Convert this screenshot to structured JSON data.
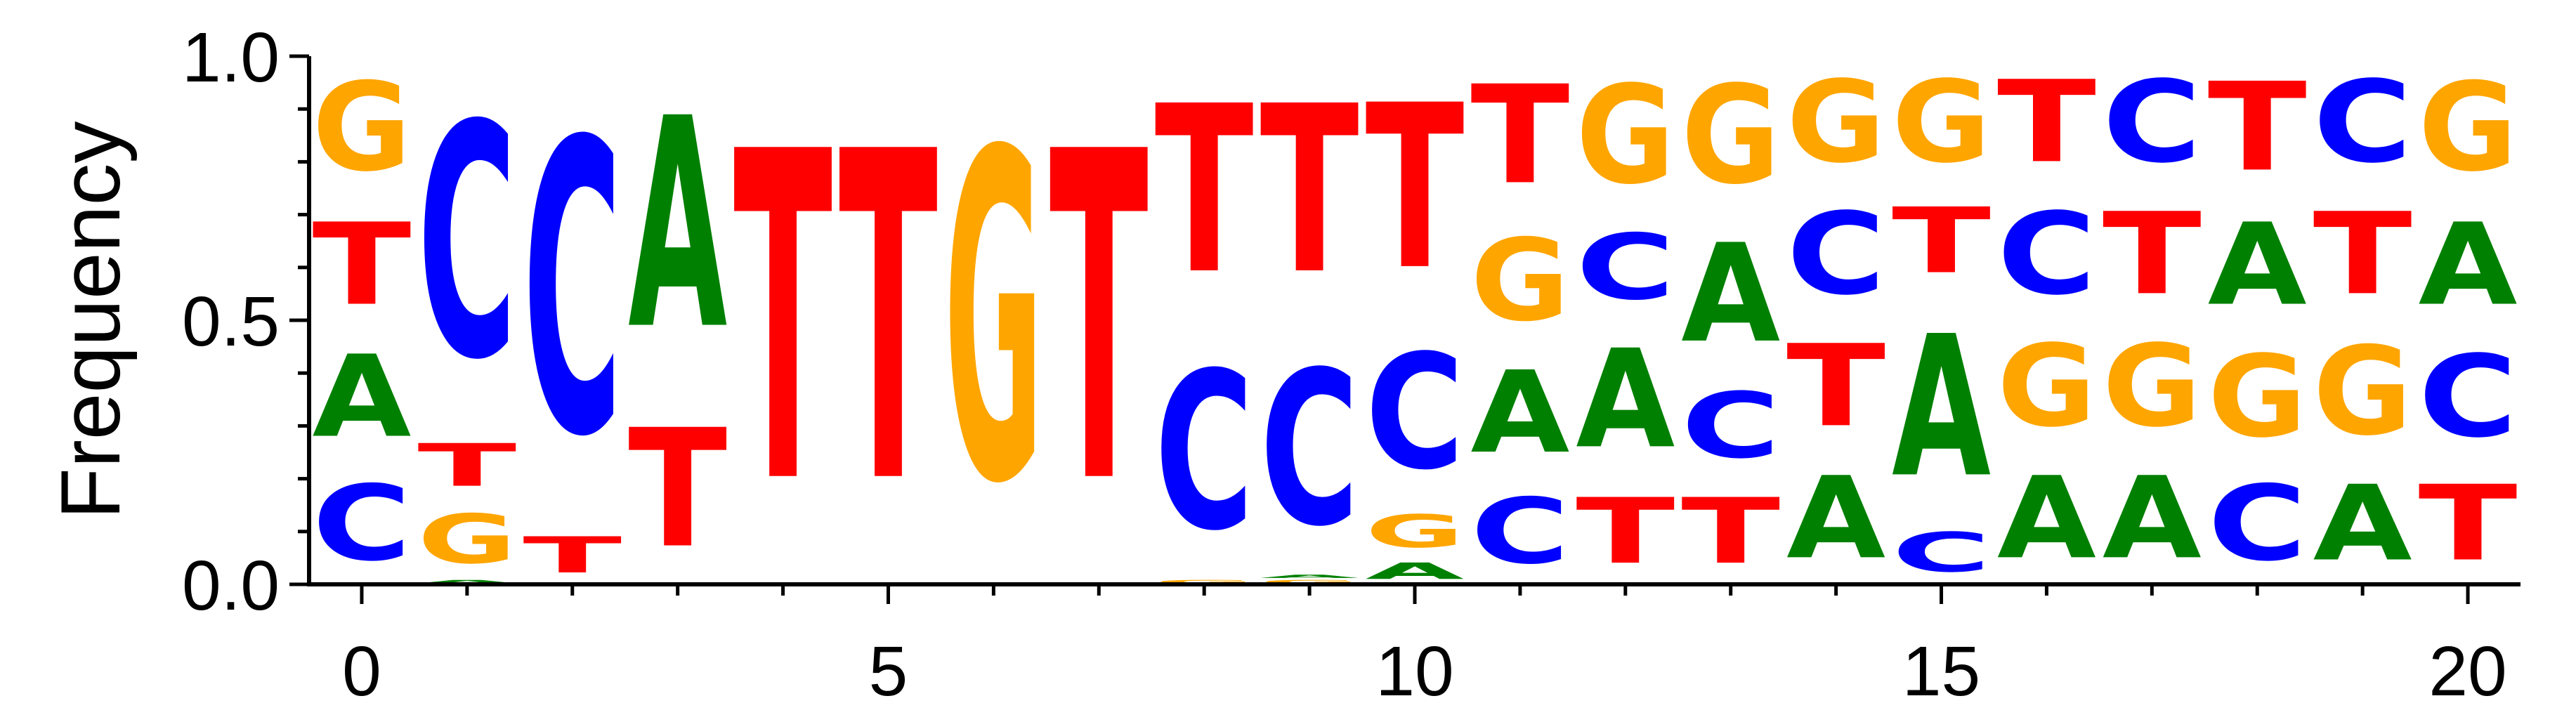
{
  "chart_data": {
    "type": "sequence-logo",
    "ylabel": "Frequency",
    "ylim": [
      0,
      1
    ],
    "xlim": [
      -0.5,
      20.5
    ],
    "xticks": [
      "0",
      "5",
      "10",
      "15",
      "20"
    ],
    "yticks": [
      "0.0",
      "0.5",
      "1.0"
    ],
    "colors": {
      "A": "#008000",
      "C": "#0000ff",
      "G": "#ffa500",
      "T": "#ff0000"
    },
    "positions": [
      {
        "pos": 0,
        "stack": [
          [
            "C",
            0.23
          ],
          [
            "A",
            0.25
          ],
          [
            "T",
            0.25
          ],
          [
            "G",
            0.27
          ]
        ]
      },
      {
        "pos": 1,
        "stack": [
          [
            "A",
            0.01
          ],
          [
            "G",
            0.15
          ],
          [
            "T",
            0.13
          ],
          [
            "C",
            0.71
          ]
        ]
      },
      {
        "pos": 2,
        "stack": [
          [
            "T",
            0.11
          ],
          [
            "C",
            0.89
          ]
        ]
      },
      {
        "pos": 3,
        "stack": [
          [
            "T",
            0.36
          ],
          [
            "A",
            0.64
          ]
        ]
      },
      {
        "pos": 4,
        "stack": [
          [
            "T",
            1.0
          ]
        ]
      },
      {
        "pos": 5,
        "stack": [
          [
            "T",
            1.0
          ]
        ]
      },
      {
        "pos": 6,
        "stack": [
          [
            "G",
            1.0
          ]
        ]
      },
      {
        "pos": 7,
        "stack": [
          [
            "T",
            1.0
          ]
        ]
      },
      {
        "pos": 8,
        "stack": [
          [
            "G",
            0.01
          ],
          [
            "C",
            0.48
          ],
          [
            "T",
            0.51
          ]
        ]
      },
      {
        "pos": 9,
        "stack": [
          [
            "G",
            0.01
          ],
          [
            "A",
            0.01
          ],
          [
            "C",
            0.47
          ],
          [
            "T",
            0.51
          ]
        ]
      },
      {
        "pos": 10,
        "stack": [
          [
            "A",
            0.05
          ],
          [
            "G",
            0.1
          ],
          [
            "C",
            0.35
          ],
          [
            "T",
            0.5
          ]
        ]
      },
      {
        "pos": 11,
        "stack": [
          [
            "C",
            0.2
          ],
          [
            "A",
            0.25
          ],
          [
            "G",
            0.25
          ],
          [
            "T",
            0.3
          ]
        ]
      },
      {
        "pos": 12,
        "stack": [
          [
            "T",
            0.2
          ],
          [
            "A",
            0.3
          ],
          [
            "C",
            0.2
          ],
          [
            "G",
            0.3
          ]
        ]
      },
      {
        "pos": 13,
        "stack": [
          [
            "T",
            0.2
          ],
          [
            "C",
            0.2
          ],
          [
            "A",
            0.3
          ],
          [
            "G",
            0.3
          ]
        ]
      },
      {
        "pos": 14,
        "stack": [
          [
            "A",
            0.25
          ],
          [
            "T",
            0.25
          ],
          [
            "C",
            0.25
          ],
          [
            "G",
            0.25
          ]
        ]
      },
      {
        "pos": 15,
        "stack": [
          [
            "C",
            0.12
          ],
          [
            "A",
            0.43
          ],
          [
            "T",
            0.2
          ],
          [
            "G",
            0.25
          ]
        ]
      },
      {
        "pos": 16,
        "stack": [
          [
            "A",
            0.25
          ],
          [
            "G",
            0.25
          ],
          [
            "C",
            0.25
          ],
          [
            "T",
            0.25
          ]
        ]
      },
      {
        "pos": 17,
        "stack": [
          [
            "A",
            0.25
          ],
          [
            "G",
            0.25
          ],
          [
            "T",
            0.25
          ],
          [
            "C",
            0.25
          ]
        ]
      },
      {
        "pos": 18,
        "stack": [
          [
            "C",
            0.23
          ],
          [
            "G",
            0.25
          ],
          [
            "A",
            0.25
          ],
          [
            "T",
            0.27
          ]
        ]
      },
      {
        "pos": 19,
        "stack": [
          [
            "A",
            0.23
          ],
          [
            "G",
            0.27
          ],
          [
            "T",
            0.25
          ],
          [
            "C",
            0.25
          ]
        ]
      },
      {
        "pos": 20,
        "stack": [
          [
            "T",
            0.23
          ],
          [
            "C",
            0.25
          ],
          [
            "A",
            0.25
          ],
          [
            "G",
            0.27
          ]
        ]
      }
    ]
  }
}
